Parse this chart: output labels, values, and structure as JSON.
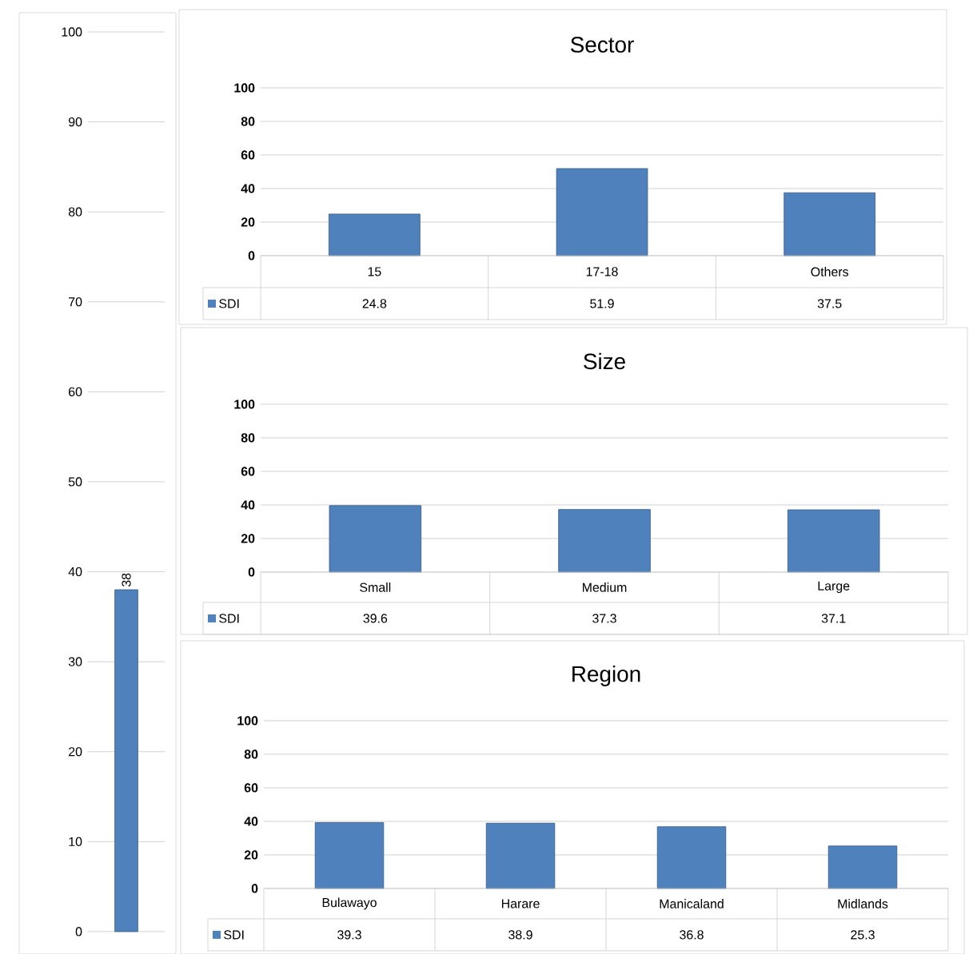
{
  "chart_data": [
    {
      "type": "bar",
      "categories": [
        null
      ],
      "values": [
        38
      ],
      "color": "#4f81bd",
      "data_labels": true,
      "ylim": [
        0,
        100
      ],
      "yticks": [
        0,
        10,
        20,
        30,
        40,
        50,
        60,
        70,
        80,
        90,
        100
      ],
      "grid": "y"
    },
    {
      "type": "bar",
      "title": "Sector",
      "categories": [
        "15",
        "17-18",
        "Others"
      ],
      "series": [
        {
          "name": "SDI",
          "color": "#4f81bd",
          "values": [
            24.8,
            51.9,
            37.5
          ]
        }
      ],
      "data_labels": true,
      "ylim": [
        0,
        100
      ],
      "yticks": [
        0,
        20,
        40,
        60,
        80,
        100
      ],
      "grid": "y"
    },
    {
      "type": "bar",
      "title": "Size",
      "categories": [
        "Small",
        "Medium",
        "Large"
      ],
      "series": [
        {
          "name": "SDI",
          "color": "#4f81bd",
          "values": [
            39.6,
            37.3,
            37.1
          ]
        }
      ],
      "data_labels": true,
      "ylim": [
        0,
        100
      ],
      "yticks": [
        0,
        20,
        40,
        60,
        80,
        100
      ],
      "grid": "y"
    },
    {
      "type": "bar",
      "title": "Region",
      "categories": [
        "Bulawayo",
        "Harare",
        "Manicaland",
        "Midlands"
      ],
      "series": [
        {
          "name": "SDI",
          "color": "#4f81bd",
          "values": [
            39.3,
            38.9,
            36.8,
            25.3
          ]
        }
      ],
      "data_labels": true,
      "ylim": [
        0,
        100
      ],
      "yticks": [
        0,
        20,
        40,
        60,
        80,
        100
      ],
      "grid": "y"
    }
  ]
}
